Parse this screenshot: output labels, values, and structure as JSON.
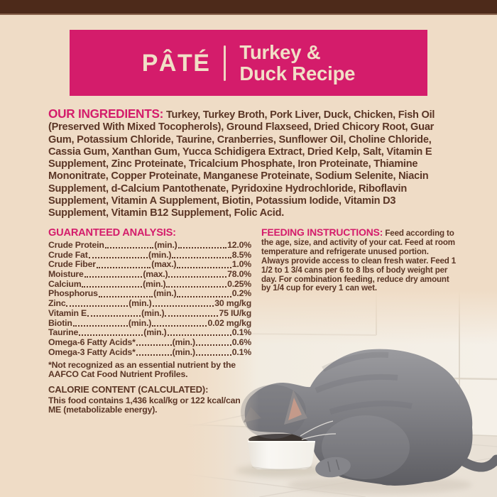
{
  "colors": {
    "background": "#efdcc6",
    "top_bar": "#4d2a1a",
    "banner_pink": "#d41c6b",
    "banner_text": "#f1dfc6",
    "body_brown": "#5b3626"
  },
  "banner": {
    "product_type": "PÂTÉ",
    "recipe_line1": "Turkey &",
    "recipe_line2": "Duck Recipe"
  },
  "ingredients": {
    "heading": "OUR INGREDIENTS:",
    "text": "Turkey, Turkey Broth, Pork Liver, Duck, Chicken, Fish Oil (Preserved With Mixed Tocopherols), Ground Flaxseed, Dried Chicory Root, Guar Gum, Potassium Chloride, Taurine, Cranberries, Sunflower Oil, Choline Chloride, Cassia Gum, Xanthan Gum, Yucca Schidigera Extract, Dried Kelp, Salt, Vitamin E Supplement, Zinc Proteinate, Tricalcium Phosphate, Iron Proteinate, Thiamine Mononitrate, Copper Proteinate, Manganese Proteinate, Sodium Selenite, Niacin Supplement, d-Calcium Pantothenate, Pyridoxine Hydrochloride, Riboflavin Supplement, Vitamin A Supplement, Biotin, Potassium Iodide, Vitamin D3 Supplement, Vitamin B12 Supplement, Folic Acid."
  },
  "guaranteed_analysis": {
    "heading": "GUARANTEED ANALYSIS:",
    "rows": [
      {
        "nutrient": "Crude Protein",
        "basis": "(min.)",
        "value": "12.0%"
      },
      {
        "nutrient": "Crude Fat",
        "basis": "(min.)",
        "value": "8.5%"
      },
      {
        "nutrient": "Crude Fiber",
        "basis": "(max.)",
        "value": "1.0%"
      },
      {
        "nutrient": "Moisture",
        "basis": "(max.)",
        "value": "78.0%"
      },
      {
        "nutrient": "Calcium",
        "basis": "(min.)",
        "value": "0.25%"
      },
      {
        "nutrient": "Phosphorus",
        "basis": "(min.)",
        "value": "0.2%"
      },
      {
        "nutrient": "Zinc",
        "basis": "(min.)",
        "value": "30 mg/kg"
      },
      {
        "nutrient": "Vitamin E",
        "basis": "(min.)",
        "value": "75 IU/kg"
      },
      {
        "nutrient": "Biotin",
        "basis": "(min.)",
        "value": "0.02 mg/kg"
      },
      {
        "nutrient": "Taurine",
        "basis": "(min.)",
        "value": "0.1%"
      },
      {
        "nutrient": "Omega-6 Fatty Acids*",
        "basis": "(min.)",
        "value": "0.6%"
      },
      {
        "nutrient": "Omega-3 Fatty Acids*",
        "basis": "(min.)",
        "value": "0.1%"
      }
    ],
    "footnote": "*Not recognized as an essential nutrient by the AAFCO Cat Food Nutrient Profiles."
  },
  "calorie_content": {
    "heading": "CALORIE CONTENT (CALCULATED):",
    "text": "This food contains 1,436 kcal/kg or 122 kcal/can ME (metabolizable energy)."
  },
  "feeding_instructions": {
    "heading": "FEEDING INSTRUCTIONS:",
    "text": "Feed according to the age, size, and activity of your cat. Feed at room temperature and refrigerate unused portion. Always provide access to clean fresh water. Feed 1 1/2 to 1 3/4 cans per 6 to 8 lbs of body weight per day. For combination feeding, reduce dry amount by 1/4 cup for every 1 can wet."
  },
  "photo": {
    "alt": "Gray cat eating from a white bowl on a tiled kitchen floor"
  }
}
